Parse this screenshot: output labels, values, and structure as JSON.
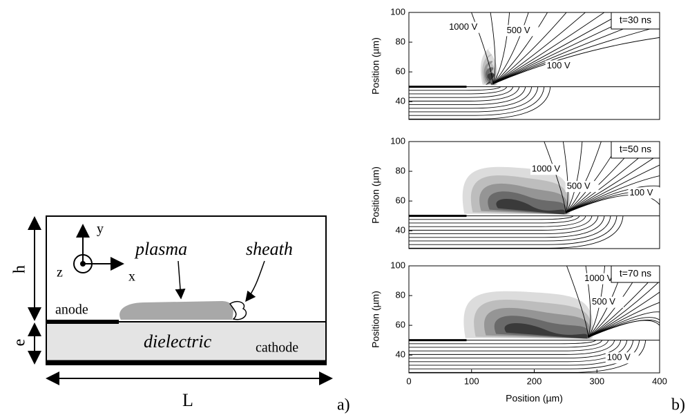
{
  "panel_a": {
    "label": "a)",
    "axes": {
      "y": "y",
      "z": "z",
      "x": "x"
    },
    "regions": {
      "plasma": "plasma",
      "sheath": "sheath",
      "anode": "anode",
      "dielectric": "dielectric",
      "cathode": "cathode"
    },
    "dimensions": {
      "h": "h",
      "e": "e",
      "L": "L"
    }
  },
  "panel_b": {
    "label": "b)",
    "x_label": "Position (µm)",
    "xlim": [
      0,
      400
    ],
    "xticks": [
      0,
      100,
      200,
      300,
      400
    ],
    "plots": [
      {
        "time": "t=30 ns",
        "y_label": "Position (µm)",
        "ylim": [
          28,
          100
        ],
        "yticks": [
          40,
          60,
          80,
          100
        ],
        "contour_labels": [
          "1000 V",
          "500 V",
          "100 V"
        ]
      },
      {
        "time": "t=50 ns",
        "y_label": "Position (µm)",
        "ylim": [
          28,
          100
        ],
        "yticks": [
          40,
          60,
          80,
          100
        ],
        "contour_labels": [
          "1000 V",
          "500 V",
          "100 V"
        ]
      },
      {
        "time": "t=70 ns",
        "y_label": "Position (µm)",
        "ylim": [
          28,
          100
        ],
        "yticks": [
          40,
          60,
          80,
          100
        ],
        "contour_labels": [
          "1000 V",
          "500 V",
          "100 V"
        ]
      }
    ]
  }
}
